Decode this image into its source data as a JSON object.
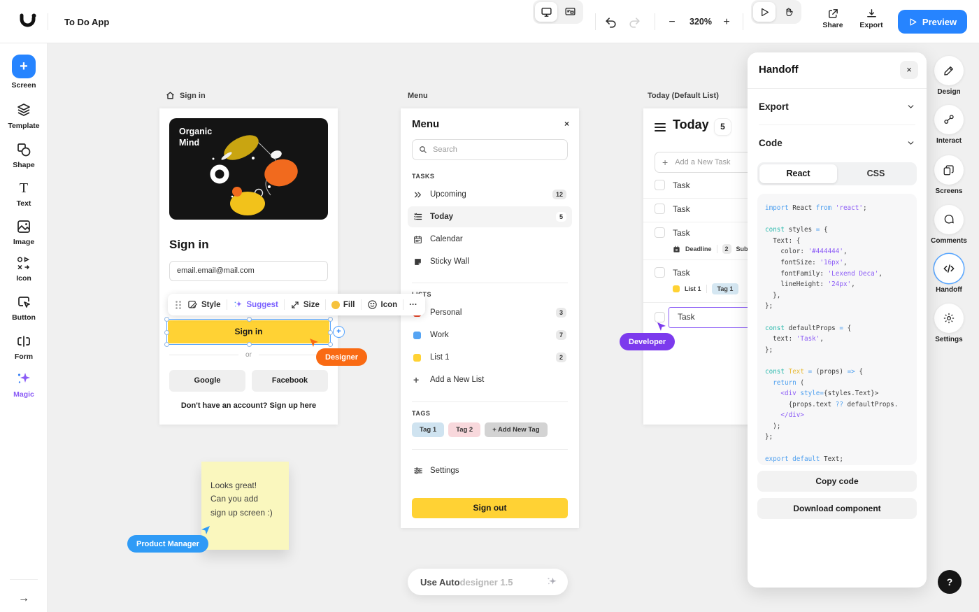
{
  "topbar": {
    "app_title": "To Do App",
    "zoom_level": "320%",
    "minus": "−",
    "plus": "+",
    "share_label": "Share",
    "export_label": "Export",
    "preview_label": "Preview"
  },
  "left_sidebar": {
    "items": [
      {
        "label": "Screen"
      },
      {
        "label": "Template"
      },
      {
        "label": "Shape"
      },
      {
        "label": "Text"
      },
      {
        "label": "Image"
      },
      {
        "label": "Icon"
      },
      {
        "label": "Button"
      },
      {
        "label": "Form"
      },
      {
        "label": "Magic"
      }
    ],
    "magic_color": "#8B5CF6"
  },
  "canvas": {
    "signin": {
      "board_label": "Sign in",
      "hero_line1": "Organic",
      "hero_line2": "Mind",
      "heading": "Sign in",
      "email_value": "email.email@mail.com",
      "button": "Sign in",
      "or": "or",
      "google": "Google",
      "facebook": "Facebook",
      "footer": "Don't have an account? Sign up here",
      "button_color": "#FFD234"
    },
    "toolbar": {
      "style": "Style",
      "suggest": "Suggest",
      "size": "Size",
      "fill": "Fill",
      "icon": "Icon",
      "more": "···",
      "suggest_color": "#7B61FF",
      "fill_color": "#F6C23C"
    },
    "menu": {
      "board_label": "Menu",
      "title": "Menu",
      "close": "×",
      "search_placeholder": "Search",
      "tasks_header": "TASKS",
      "items": [
        {
          "label": "Upcoming",
          "badge": "12"
        },
        {
          "label": "Today",
          "badge": "5"
        },
        {
          "label": "Calendar",
          "badge": ""
        },
        {
          "label": "Sticky Wall",
          "badge": ""
        }
      ],
      "lists_header": "LISTS",
      "lists": [
        {
          "label": "Personal",
          "badge": "3",
          "color": "#E8472B"
        },
        {
          "label": "Work",
          "badge": "7",
          "color": "#55A4F3"
        },
        {
          "label": "List 1",
          "badge": "2",
          "color": "#FFD234"
        }
      ],
      "add_list": "Add a New List",
      "tags_header": "TAGS",
      "tags": [
        {
          "label": "Tag 1",
          "color": "#CFE3F0"
        },
        {
          "label": "Tag 2",
          "color": "#F8D8DC"
        },
        {
          "label": "+ Add New Tag",
          "color": "#D3D3D3"
        }
      ],
      "settings": "Settings",
      "signout": "Sign out"
    },
    "today": {
      "board_label": "Today (Default List)",
      "title": "Today",
      "badge": "5",
      "add_task": "Add a New Task",
      "rows": [
        {
          "label": "Task"
        },
        {
          "label": "Task"
        },
        {
          "label": "Task",
          "deadline": "Deadline",
          "sub_badge": "2",
          "sub_label": "Subtasks"
        },
        {
          "label": "Task",
          "list": "List 1",
          "tag": "Tag 1"
        },
        {
          "label": "Task",
          "selected": true,
          "selection_color": "#8B5CF6"
        }
      ]
    },
    "cursors": {
      "designer": "Designer",
      "designer_color": "#F96A13",
      "developer": "Developer",
      "developer_color": "#7C3AED",
      "product_manager": "Product Manager",
      "product_manager_color": "#2F9BF6"
    },
    "sticky_note": {
      "line1": "Looks great!",
      "line2": "Can you add",
      "line3": "sign up screen :)"
    },
    "autodesigner": {
      "dark": "Use Auto",
      "light": "designer 1.5"
    }
  },
  "handoff": {
    "title": "Handoff",
    "close": "×",
    "export_label": "Export",
    "code_label": "Code",
    "tabs": [
      {
        "label": "React"
      },
      {
        "label": "CSS"
      }
    ],
    "copy_code": "Copy code",
    "download": "Download component",
    "code_lines": [
      [
        {
          "c": "b",
          "x": "import"
        },
        {
          "c": "p",
          "x": " React "
        },
        {
          "c": "b",
          "x": "from"
        },
        {
          "c": "s",
          "x": " 'react'"
        },
        {
          "c": "p",
          "x": ";"
        }
      ],
      [],
      [
        {
          "c": "k",
          "x": "const"
        },
        {
          "c": "p",
          "x": " styles "
        },
        {
          "c": "b",
          "x": "="
        },
        {
          "c": "p",
          "x": " {"
        }
      ],
      [
        {
          "c": "p",
          "x": "  Text: {"
        }
      ],
      [
        {
          "c": "p",
          "x": "    color: "
        },
        {
          "c": "s",
          "x": "'#444444'"
        },
        {
          "c": "p",
          "x": ","
        }
      ],
      [
        {
          "c": "p",
          "x": "    fontSize: "
        },
        {
          "c": "s",
          "x": "'16px'"
        },
        {
          "c": "p",
          "x": ","
        }
      ],
      [
        {
          "c": "p",
          "x": "    fontFamily: "
        },
        {
          "c": "s",
          "x": "'Lexend Deca'"
        },
        {
          "c": "p",
          "x": ","
        }
      ],
      [
        {
          "c": "p",
          "x": "    lineHeight: "
        },
        {
          "c": "s",
          "x": "'24px'"
        },
        {
          "c": "p",
          "x": ","
        }
      ],
      [
        {
          "c": "p",
          "x": "  },"
        }
      ],
      [
        {
          "c": "p",
          "x": "};"
        }
      ],
      [],
      [
        {
          "c": "k",
          "x": "const"
        },
        {
          "c": "p",
          "x": " defaultProps "
        },
        {
          "c": "b",
          "x": "="
        },
        {
          "c": "p",
          "x": " {"
        }
      ],
      [
        {
          "c": "p",
          "x": "  text: "
        },
        {
          "c": "s",
          "x": "'Task'"
        },
        {
          "c": "p",
          "x": ","
        }
      ],
      [
        {
          "c": "p",
          "x": "};"
        }
      ],
      [],
      [
        {
          "c": "k",
          "x": "const"
        },
        {
          "c": "y",
          "x": " Text "
        },
        {
          "c": "b",
          "x": "="
        },
        {
          "c": "p",
          "x": " (props) "
        },
        {
          "c": "b",
          "x": "=>"
        },
        {
          "c": "p",
          "x": " {"
        }
      ],
      [
        {
          "c": "b",
          "x": "  return"
        },
        {
          "c": "p",
          "x": " ("
        }
      ],
      [
        {
          "c": "p",
          "x": "    "
        },
        {
          "c": "t",
          "x": "<div"
        },
        {
          "c": "b",
          "x": " style="
        },
        {
          "c": "p",
          "x": "{styles.Text}>"
        }
      ],
      [
        {
          "c": "p",
          "x": "      {props.text "
        },
        {
          "c": "b",
          "x": "??"
        },
        {
          "c": "p",
          "x": " defaultProps."
        }
      ],
      [
        {
          "c": "p",
          "x": "    "
        },
        {
          "c": "t",
          "x": "</div>"
        }
      ],
      [
        {
          "c": "p",
          "x": "  );"
        }
      ],
      [
        {
          "c": "p",
          "x": "};"
        }
      ],
      [],
      [
        {
          "c": "b",
          "x": "export default"
        },
        {
          "c": "p",
          "x": " Text;"
        }
      ]
    ]
  },
  "right_sidebar": {
    "items": [
      {
        "label": "Design"
      },
      {
        "label": "Interact"
      },
      {
        "label": "Screens"
      },
      {
        "label": "Comments"
      },
      {
        "label": "Handoff"
      },
      {
        "label": "Settings"
      }
    ],
    "active_ring_color": "#58A6FF"
  },
  "help_label": "?"
}
